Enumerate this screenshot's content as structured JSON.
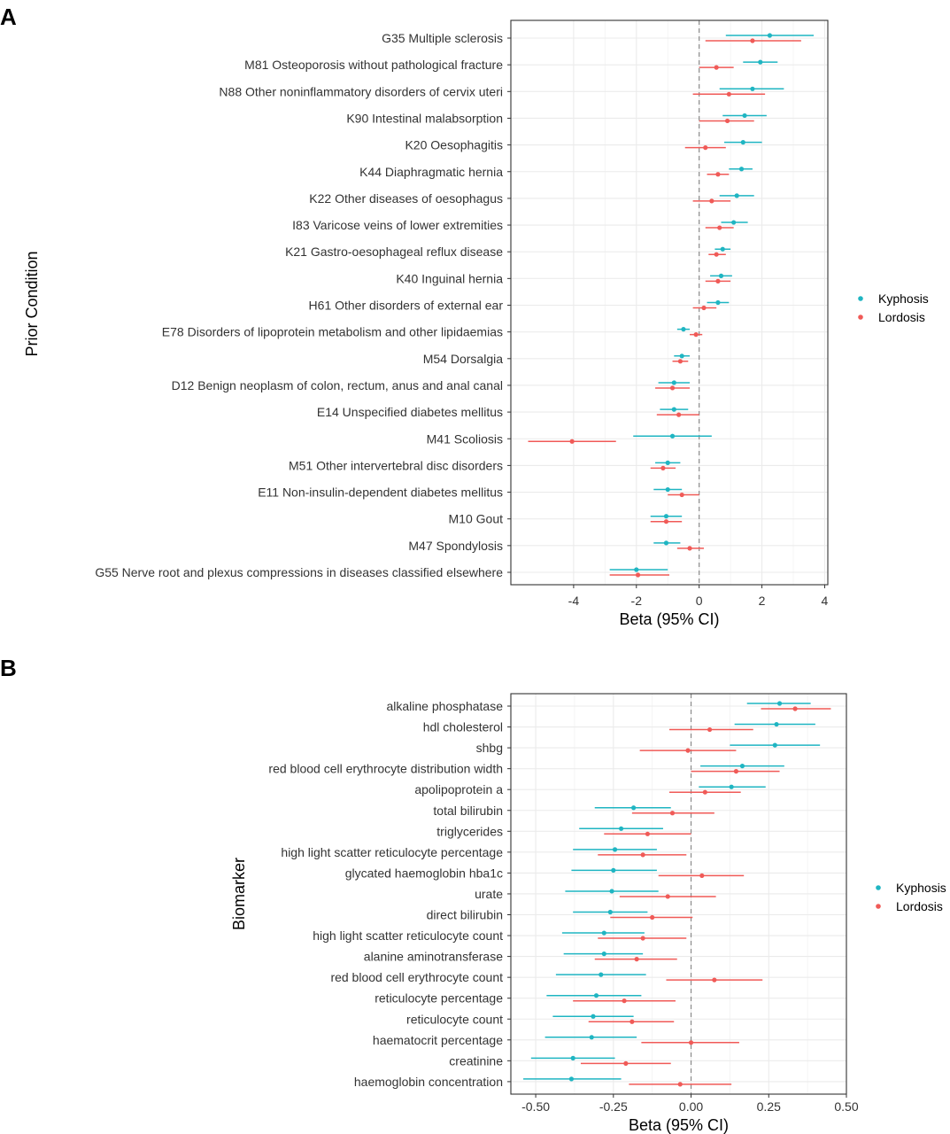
{
  "colors": {
    "kyphosis": "#1fb5c2",
    "lordosis": "#f05a57"
  },
  "chart_data": [
    {
      "panel": "A",
      "type": "scatter",
      "subtype": "forest-plot",
      "xlabel": "Beta (95% CI)",
      "ylabel": "Prior Condition",
      "xlim": [
        -6,
        4.1
      ],
      "xticks": [
        -4,
        -2,
        0,
        2,
        4
      ],
      "xtick_labels": [
        "-4",
        "-2",
        "0",
        "2",
        "4"
      ],
      "reference_line": 0,
      "grid": true,
      "legend_position": "right",
      "legend": [
        "Kyphosis",
        "Lordosis"
      ],
      "categories": [
        "G35 Multiple sclerosis",
        "M81 Osteoporosis without pathological fracture",
        "N88 Other noninflammatory disorders of cervix uteri",
        "K90 Intestinal malabsorption",
        "K20 Oesophagitis",
        "K44 Diaphragmatic hernia",
        "K22 Other diseases of oesophagus",
        "I83 Varicose veins of lower extremities",
        "K21 Gastro-oesophageal reflux disease",
        "K40 Inguinal hernia",
        "H61 Other disorders of external ear",
        "E78 Disorders of lipoprotein metabolism and other lipidaemias",
        "M54 Dorsalgia",
        "D12 Benign neoplasm of colon, rectum, anus and anal canal",
        "E14 Unspecified diabetes mellitus",
        "M41 Scoliosis",
        "M51 Other intervertebral disc disorders",
        "E11 Non-insulin-dependent diabetes mellitus",
        "M10 Gout",
        "M47 Spondylosis",
        "G55 Nerve root and plexus compressions in diseases classified elsewhere"
      ],
      "series": [
        {
          "name": "Kyphosis",
          "estimates": [
            2.25,
            1.95,
            1.7,
            1.45,
            1.4,
            1.35,
            1.2,
            1.1,
            0.75,
            0.7,
            0.6,
            -0.5,
            -0.55,
            -0.8,
            -0.8,
            -0.85,
            -1.0,
            -1.0,
            -1.05,
            -1.05,
            -2.0
          ],
          "lower": [
            0.85,
            1.4,
            0.65,
            0.75,
            0.8,
            0.95,
            0.65,
            0.7,
            0.5,
            0.35,
            0.25,
            -0.7,
            -0.8,
            -1.3,
            -1.25,
            -2.1,
            -1.4,
            -1.45,
            -1.55,
            -1.45,
            -2.85
          ],
          "upper": [
            3.65,
            2.5,
            2.7,
            2.15,
            2.0,
            1.7,
            1.75,
            1.55,
            1.0,
            1.05,
            0.95,
            -0.3,
            -0.3,
            -0.3,
            -0.35,
            0.4,
            -0.6,
            -0.55,
            -0.55,
            -0.6,
            -1.0
          ]
        },
        {
          "name": "Lordosis",
          "estimates": [
            1.7,
            0.55,
            0.95,
            0.9,
            0.2,
            0.6,
            0.4,
            0.65,
            0.55,
            0.6,
            0.15,
            -0.1,
            -0.6,
            -0.85,
            -0.65,
            -4.05,
            -1.15,
            -0.55,
            -1.05,
            -0.3,
            -1.95
          ],
          "lower": [
            0.2,
            0.0,
            -0.2,
            0.0,
            -0.45,
            0.25,
            -0.2,
            0.2,
            0.3,
            0.2,
            -0.2,
            -0.3,
            -0.85,
            -1.4,
            -1.35,
            -5.45,
            -1.55,
            -1.0,
            -1.55,
            -0.7,
            -2.85
          ],
          "upper": [
            3.25,
            1.1,
            2.1,
            1.75,
            0.85,
            0.95,
            1.0,
            1.1,
            0.85,
            1.0,
            0.55,
            0.1,
            -0.35,
            -0.3,
            0.0,
            -2.65,
            -0.75,
            0.0,
            -0.55,
            0.15,
            -0.95
          ]
        }
      ]
    },
    {
      "panel": "B",
      "type": "scatter",
      "subtype": "forest-plot",
      "xlabel": "Beta (95% CI)",
      "ylabel": "Biomarker",
      "xlim": [
        -0.58,
        0.5
      ],
      "xticks": [
        -0.5,
        -0.25,
        0.0,
        0.25,
        0.5
      ],
      "xtick_labels": [
        "-0.50",
        "-0.25",
        "0.00",
        "0.25",
        "0.50"
      ],
      "reference_line": 0,
      "grid": true,
      "legend_position": "right",
      "legend": [
        "Kyphosis",
        "Lordosis"
      ],
      "categories": [
        "alkaline phosphatase",
        "hdl cholesterol",
        "shbg",
        "red blood cell erythrocyte distribution width",
        "apolipoprotein a",
        "total bilirubin",
        "triglycerides",
        "high light scatter reticulocyte percentage",
        "glycated haemoglobin hba1c",
        "urate",
        "direct bilirubin",
        "high light scatter reticulocyte count",
        "alanine aminotransferase",
        "red blood cell erythrocyte count",
        "reticulocyte percentage",
        "reticulocyte count",
        "haematocrit percentage",
        "creatinine",
        "haemoglobin concentration"
      ],
      "series": [
        {
          "name": "Kyphosis",
          "estimates": [
            0.285,
            0.275,
            0.27,
            0.165,
            0.13,
            -0.185,
            -0.225,
            -0.245,
            -0.25,
            -0.255,
            -0.26,
            -0.28,
            -0.28,
            -0.29,
            -0.305,
            -0.315,
            -0.32,
            -0.38,
            -0.385
          ],
          "lower": [
            0.18,
            0.14,
            0.125,
            0.03,
            0.025,
            -0.31,
            -0.36,
            -0.38,
            -0.385,
            -0.405,
            -0.38,
            -0.415,
            -0.41,
            -0.435,
            -0.465,
            -0.445,
            -0.47,
            -0.515,
            -0.54
          ],
          "upper": [
            0.385,
            0.4,
            0.415,
            0.3,
            0.24,
            -0.065,
            -0.09,
            -0.11,
            -0.11,
            -0.105,
            -0.14,
            -0.15,
            -0.155,
            -0.145,
            -0.16,
            -0.185,
            -0.175,
            -0.245,
            -0.225
          ]
        },
        {
          "name": "Lordosis",
          "estimates": [
            0.335,
            0.06,
            -0.01,
            0.145,
            0.045,
            -0.06,
            -0.14,
            -0.155,
            0.035,
            -0.075,
            -0.125,
            -0.155,
            -0.175,
            0.075,
            -0.215,
            -0.19,
            0.0,
            -0.21,
            -0.035
          ],
          "lower": [
            0.225,
            -0.07,
            -0.165,
            0.0,
            -0.07,
            -0.19,
            -0.28,
            -0.3,
            -0.105,
            -0.23,
            -0.26,
            -0.3,
            -0.31,
            -0.08,
            -0.38,
            -0.33,
            -0.16,
            -0.355,
            -0.2
          ],
          "upper": [
            0.45,
            0.2,
            0.145,
            0.285,
            0.16,
            0.075,
            0.0,
            -0.015,
            0.17,
            0.08,
            0.005,
            -0.015,
            -0.045,
            0.23,
            -0.05,
            -0.055,
            0.155,
            -0.065,
            0.13
          ]
        }
      ]
    }
  ]
}
